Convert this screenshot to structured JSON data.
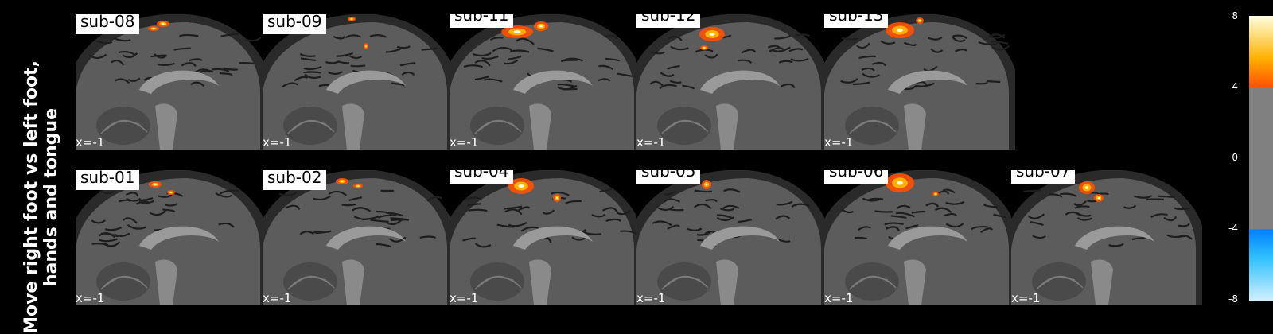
{
  "figure": {
    "row_title": [
      "Move right foot vs left foot,",
      "hands and tongue"
    ],
    "rows": [
      {
        "panels": [
          {
            "subject": "sub-08",
            "coordinate": "x=-1"
          },
          {
            "subject": "sub-09",
            "coordinate": "x=-1"
          },
          {
            "subject": "sub-11",
            "coordinate": "x=-1"
          },
          {
            "subject": "sub-12",
            "coordinate": "x=-1"
          },
          {
            "subject": "sub-13",
            "coordinate": "x=-1"
          }
        ]
      },
      {
        "panels": [
          {
            "subject": "sub-01",
            "coordinate": "x=-1"
          },
          {
            "subject": "sub-02",
            "coordinate": "x=-1"
          },
          {
            "subject": "sub-04",
            "coordinate": "x=-1"
          },
          {
            "subject": "sub-05",
            "coordinate": "x=-1"
          },
          {
            "subject": "sub-06",
            "coordinate": "x=-1"
          },
          {
            "subject": "sub-07",
            "coordinate": "x=-1"
          }
        ]
      }
    ],
    "colorbar": {
      "ticks": [
        "8",
        "4",
        "0",
        "-4",
        "-8"
      ],
      "colors": {
        "high": "#ffffe0",
        "mid_high": "#ffb000",
        "threshold_pos": "#ff5000",
        "neutral": "#808080",
        "threshold_neg": "#0080ff",
        "mid_low": "#30c0ff",
        "low": "#d0f0ff"
      }
    }
  }
}
